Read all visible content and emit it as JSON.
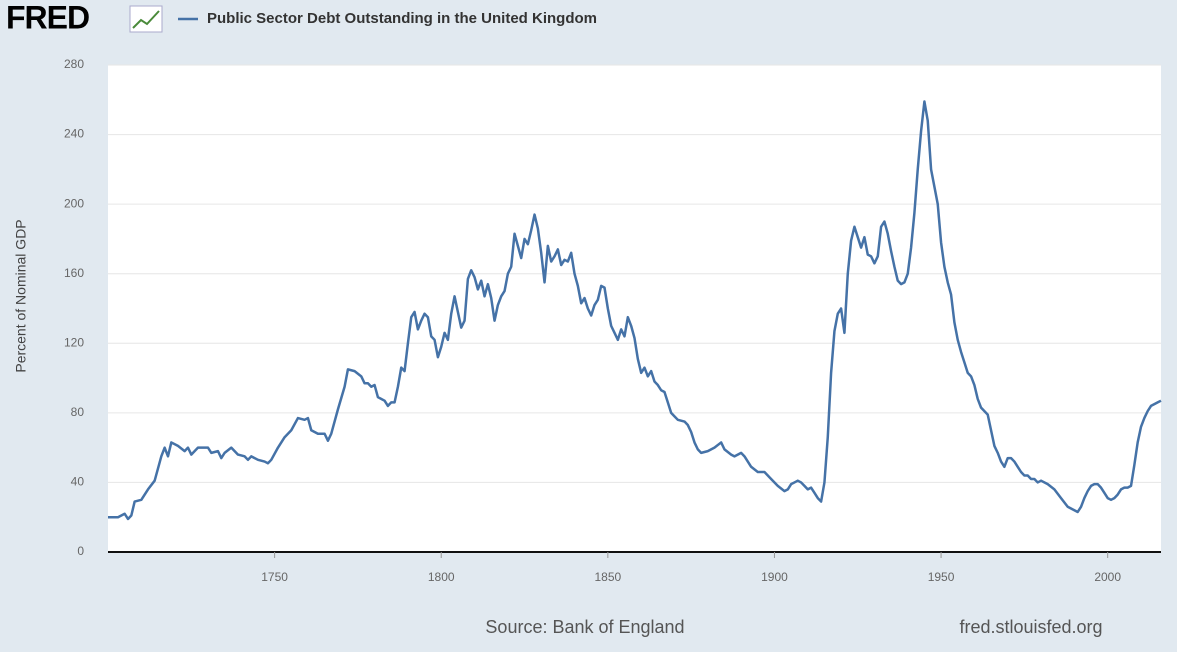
{
  "logo": "FRED",
  "chart_data": {
    "type": "line",
    "y_label": "Percent of Nominal GDP",
    "source": "Source: Bank of England",
    "site": "fred.stlouisfed.org",
    "xlim": [
      1700,
      2016
    ],
    "ylim": [
      0,
      280
    ],
    "xticks": [
      1750,
      1800,
      1850,
      1900,
      1950,
      2000
    ],
    "yticks": [
      0,
      40,
      80,
      120,
      160,
      200,
      240,
      280
    ],
    "grid": true,
    "x": [
      1700,
      1703,
      1705,
      1706,
      1707,
      1708,
      1710,
      1712,
      1714,
      1716,
      1717,
      1718,
      1719,
      1721,
      1723,
      1724,
      1725,
      1727,
      1730,
      1731,
      1733,
      1734,
      1735,
      1737,
      1739,
      1741,
      1742,
      1743,
      1745,
      1747,
      1748,
      1749,
      1751,
      1753,
      1755,
      1757,
      1759,
      1760,
      1761,
      1763,
      1765,
      1766,
      1767,
      1769,
      1771,
      1772,
      1774,
      1776,
      1777,
      1778,
      1779,
      1780,
      1781,
      1783,
      1784,
      1785,
      1786,
      1787,
      1788,
      1789,
      1790,
      1791,
      1792,
      1793,
      1794,
      1795,
      1796,
      1797,
      1798,
      1799,
      1800,
      1801,
      1802,
      1803,
      1804,
      1805,
      1806,
      1807,
      1808,
      1809,
      1810,
      1811,
      1812,
      1813,
      1814,
      1815,
      1816,
      1817,
      1818,
      1819,
      1820,
      1821,
      1822,
      1823,
      1824,
      1825,
      1826,
      1827,
      1828,
      1829,
      1830,
      1831,
      1832,
      1833,
      1834,
      1835,
      1836,
      1837,
      1838,
      1839,
      1840,
      1841,
      1842,
      1843,
      1844,
      1845,
      1846,
      1847,
      1848,
      1849,
      1850,
      1851,
      1852,
      1853,
      1854,
      1855,
      1856,
      1857,
      1858,
      1859,
      1860,
      1861,
      1862,
      1863,
      1864,
      1865,
      1866,
      1867,
      1868,
      1869,
      1870,
      1871,
      1873,
      1874,
      1875,
      1876,
      1877,
      1878,
      1880,
      1882,
      1884,
      1885,
      1887,
      1888,
      1890,
      1891,
      1892,
      1893,
      1895,
      1897,
      1899,
      1901,
      1903,
      1904,
      1905,
      1906,
      1907,
      1908,
      1909,
      1910,
      1911,
      1912,
      1913,
      1914,
      1915,
      1916,
      1917,
      1918,
      1919,
      1920,
      1921,
      1922,
      1923,
      1924,
      1925,
      1926,
      1927,
      1928,
      1929,
      1930,
      1931,
      1932,
      1933,
      1934,
      1935,
      1936,
      1937,
      1938,
      1939,
      1940,
      1941,
      1942,
      1943,
      1944,
      1945,
      1946,
      1947,
      1948,
      1949,
      1950,
      1951,
      1952,
      1953,
      1954,
      1955,
      1956,
      1957,
      1958,
      1959,
      1960,
      1961,
      1962,
      1963,
      1964,
      1965,
      1966,
      1967,
      1968,
      1969,
      1970,
      1971,
      1972,
      1973,
      1974,
      1975,
      1976,
      1977,
      1978,
      1979,
      1980,
      1982,
      1984,
      1986,
      1988,
      1990,
      1991,
      1992,
      1993,
      1994,
      1995,
      1996,
      1997,
      1998,
      1999,
      2000,
      2001,
      2002,
      2003,
      2004,
      2005,
      2006,
      2007,
      2008,
      2009,
      2010,
      2011,
      2012,
      2013,
      2014,
      2015,
      2016
    ],
    "series": [
      {
        "name": "Public Sector Debt Outstanding in the United Kingdom",
        "color": "#4572a7",
        "values": [
          20,
          20,
          22,
          19,
          21,
          29,
          30,
          36,
          41,
          55,
          60,
          55,
          63,
          61,
          58,
          60,
          56,
          60,
          60,
          57,
          58,
          54,
          57,
          60,
          56,
          55,
          53,
          55,
          53,
          52,
          51,
          53,
          60,
          66,
          70,
          77,
          76,
          77,
          70,
          68,
          68,
          64,
          68,
          82,
          95,
          105,
          104,
          101,
          97,
          97,
          95,
          96,
          89,
          87,
          84,
          86,
          86,
          95,
          106,
          104,
          120,
          135,
          138,
          128,
          133,
          137,
          135,
          124,
          122,
          112,
          118,
          126,
          122,
          137,
          147,
          138,
          129,
          133,
          157,
          162,
          158,
          151,
          156,
          147,
          154,
          146,
          133,
          142,
          147,
          150,
          160,
          164,
          183,
          176,
          169,
          180,
          177,
          185,
          194,
          186,
          172,
          155,
          176,
          167,
          170,
          174,
          165,
          168,
          167,
          172,
          160,
          153,
          143,
          146,
          140,
          136,
          142,
          145,
          153,
          152,
          140,
          130,
          126,
          122,
          128,
          124,
          135,
          130,
          123,
          111,
          103,
          106,
          101,
          104,
          98,
          96,
          93,
          92,
          86,
          80,
          78,
          76,
          75,
          73,
          69,
          63,
          59,
          57,
          58,
          60,
          63,
          59,
          56,
          55,
          57,
          55,
          52,
          49,
          46,
          46,
          42,
          38,
          35,
          36,
          39,
          40,
          41,
          40,
          38,
          36,
          37,
          34,
          31,
          29,
          40,
          66,
          103,
          127,
          137,
          140,
          126,
          160,
          179,
          187,
          181,
          175,
          181,
          171,
          170,
          166,
          170,
          187,
          190,
          183,
          173,
          164,
          156,
          154,
          155,
          160,
          175,
          195,
          220,
          242,
          259,
          248,
          220,
          210,
          200,
          178,
          164,
          155,
          148,
          132,
          122,
          115,
          109,
          103,
          101,
          96,
          88,
          83,
          81,
          79,
          70,
          61,
          57,
          52,
          49,
          54,
          54,
          52,
          49,
          46,
          44,
          44,
          42,
          42,
          40,
          41,
          39,
          36,
          31,
          26,
          24,
          23,
          26,
          31,
          35,
          38,
          39,
          39,
          37,
          34,
          31,
          30,
          31,
          33,
          36,
          37,
          37,
          38,
          50,
          63,
          72,
          77,
          81,
          84,
          85,
          86,
          87
        ]
      }
    ]
  }
}
